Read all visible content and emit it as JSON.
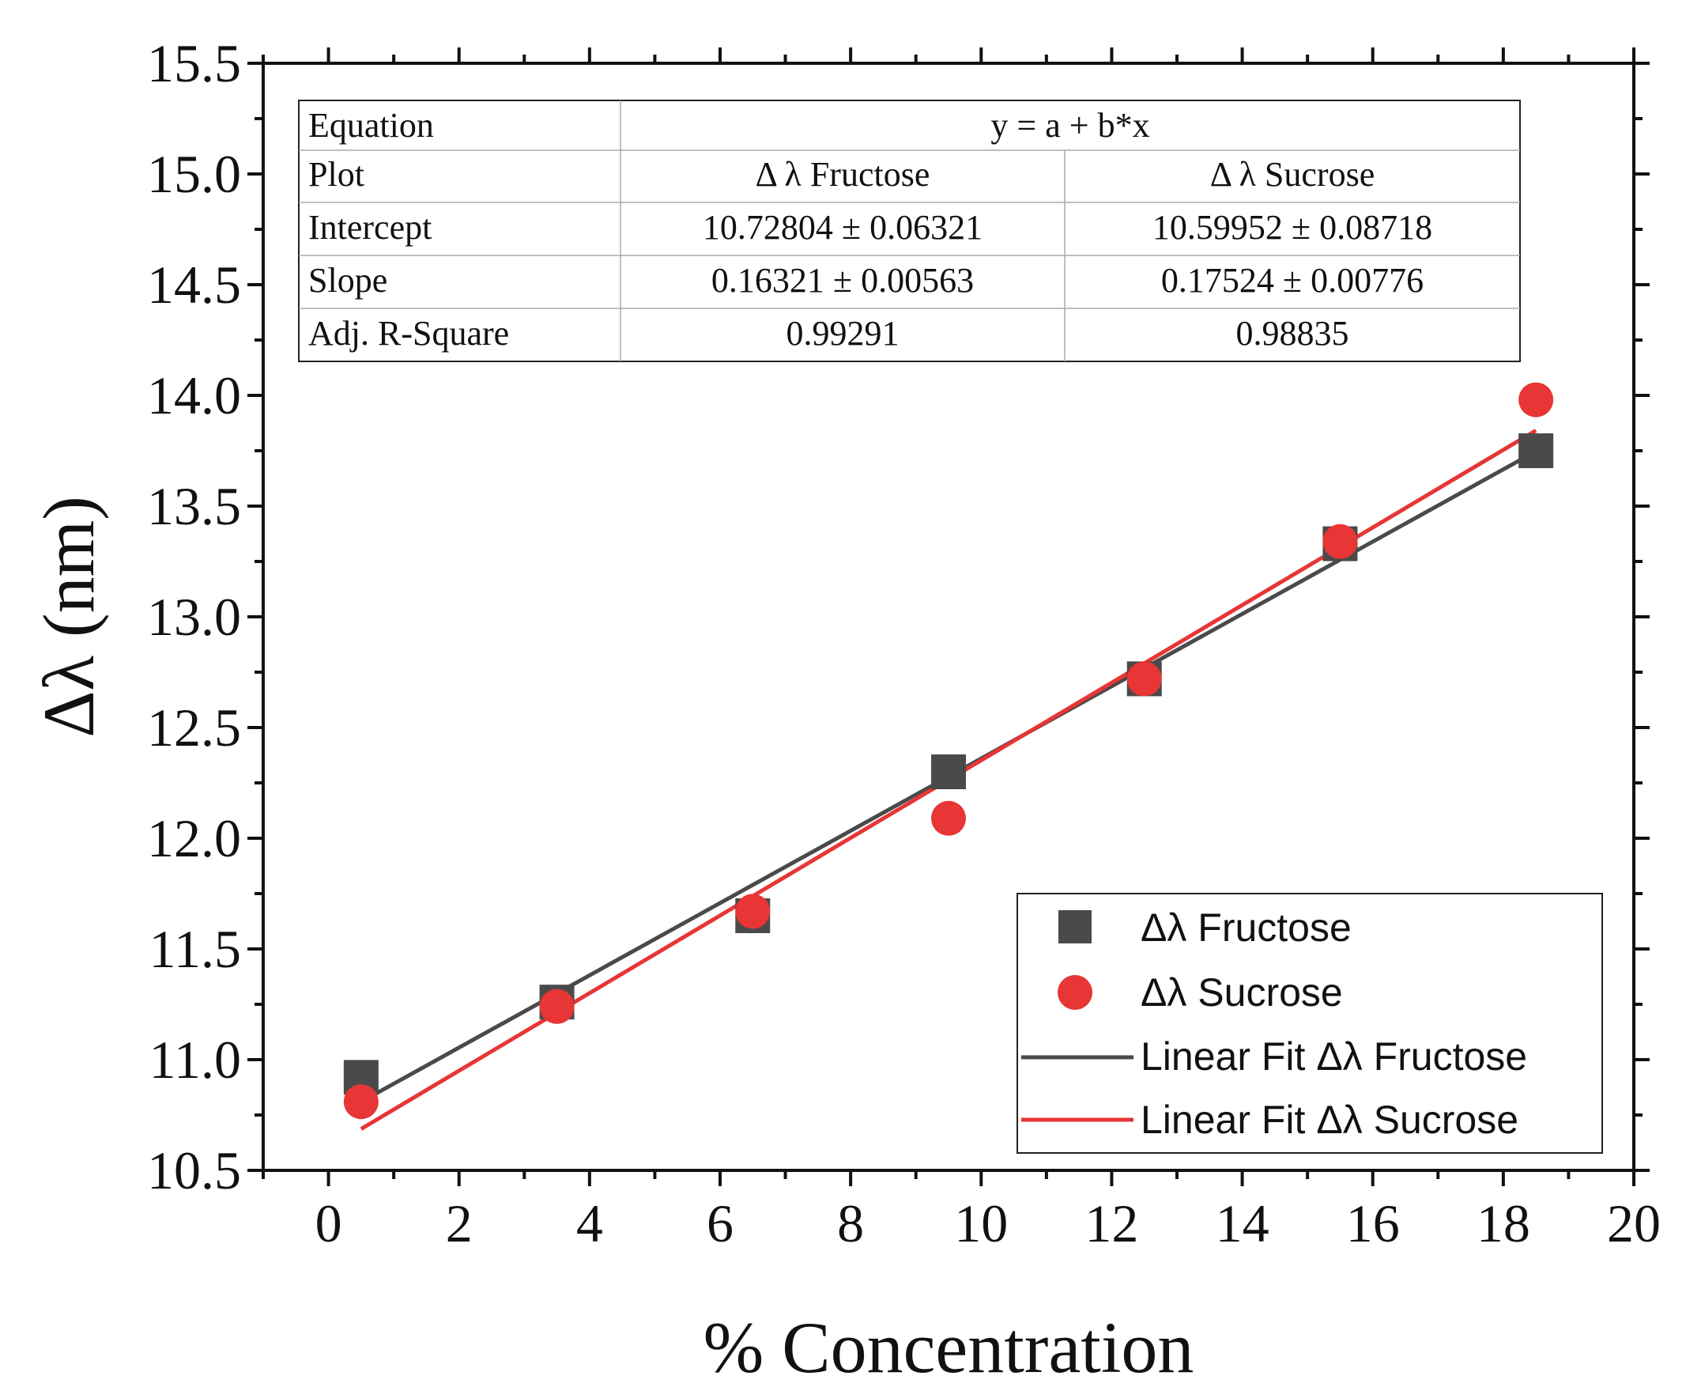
{
  "chart_data": {
    "type": "scatter",
    "title": "",
    "xlabel": "% Concentration",
    "ylabel": "Δλ (nm)",
    "xlim": [
      -1,
      20
    ],
    "ylim": [
      10.5,
      15.5
    ],
    "x_ticks": [
      "0",
      "2",
      "4",
      "6",
      "8",
      "10",
      "12",
      "14",
      "16",
      "18",
      "20"
    ],
    "y_ticks": [
      "10.5",
      "11.0",
      "11.5",
      "12.0",
      "12.5",
      "13.0",
      "13.5",
      "14.0",
      "14.5",
      "15.0",
      "15.5"
    ],
    "grid": false,
    "legend_position": "bottom-right",
    "series": [
      {
        "name": "Δλ Fructose",
        "marker": "square",
        "color": "#4a4a4a",
        "x": [
          0.5,
          3.5,
          6.5,
          9.5,
          12.5,
          15.5,
          18.5
        ],
        "y": [
          10.92,
          11.26,
          11.65,
          12.3,
          12.72,
          13.33,
          13.75
        ]
      },
      {
        "name": "Δλ Sucrose",
        "marker": "circle",
        "color": "#e83535",
        "x": [
          0.5,
          3.5,
          6.5,
          9.5,
          12.5,
          15.5,
          18.5
        ],
        "y": [
          10.81,
          11.24,
          11.67,
          12.09,
          12.72,
          13.34,
          13.98
        ]
      }
    ],
    "fits": [
      {
        "name": "Linear Fit Δλ Fructose",
        "color": "#4a4a4a",
        "intercept": 10.72804,
        "slope": 0.16321,
        "x_range": [
          0.5,
          18.5
        ]
      },
      {
        "name": "Linear Fit Δλ Sucrose",
        "color": "#e83535",
        "intercept": 10.59952,
        "slope": 0.17524,
        "x_range": [
          0.5,
          18.5
        ]
      }
    ],
    "fit_table": {
      "rows": [
        {
          "label": "Equation",
          "span": "y = a + b*x"
        },
        {
          "label": "Plot",
          "fructose": "Δ λ Fructose",
          "sucrose": "Δ λ Sucrose"
        },
        {
          "label": "Intercept",
          "fructose": "10.72804 ± 0.06321",
          "sucrose": "10.59952 ± 0.08718"
        },
        {
          "label": "Slope",
          "fructose": "0.16321 ± 0.00563",
          "sucrose": "0.17524 ± 0.00776"
        },
        {
          "label": "Adj. R-Square",
          "fructose": "0.99291",
          "sucrose": "0.98835"
        }
      ]
    },
    "legend": [
      "Δλ Fructose",
      "Δλ Sucrose",
      "Linear Fit Δλ Fructose",
      "Linear Fit Δλ Sucrose"
    ]
  }
}
